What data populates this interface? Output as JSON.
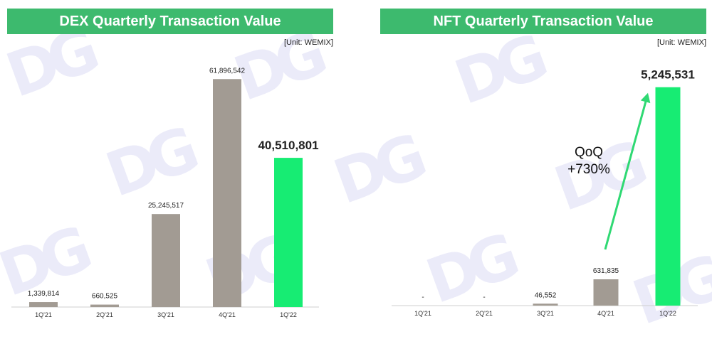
{
  "watermark_text": "DG",
  "colors": {
    "title_bg": "#3dba6e",
    "bar_past": "#a29b93",
    "bar_highlight": "#17ec73",
    "arrow": "#2fd973"
  },
  "chart_data": [
    {
      "type": "bar",
      "title": "DEX Quarterly Transaction Value",
      "unit": "[Unit: WEMIX]",
      "categories": [
        "1Q'21",
        "2Q'21",
        "3Q'21",
        "4Q'21",
        "1Q'22"
      ],
      "values": [
        1339814,
        660525,
        25245517,
        61896542,
        40510801
      ],
      "value_labels": [
        "1,339,814",
        "660,525",
        "25,245,517",
        "61,896,542",
        "40,510,801"
      ],
      "highlight_index": 4,
      "ylim": [
        0,
        66000000
      ],
      "grid": false
    },
    {
      "type": "bar",
      "title": "NFT Quarterly Transaction Value",
      "unit": "[Unit: WEMIX]",
      "categories": [
        "1Q'21",
        "2Q'21",
        "3Q'21",
        "4Q'21",
        "1Q'22"
      ],
      "values": [
        0,
        0,
        46552,
        631835,
        5245531
      ],
      "value_labels": [
        "-",
        "-",
        "46,552",
        "631,835",
        "5,245,531"
      ],
      "highlight_index": 4,
      "ylim": [
        0,
        5650000
      ],
      "grid": false,
      "annotation": {
        "line1": "QoQ",
        "line2": "+730%"
      }
    }
  ]
}
